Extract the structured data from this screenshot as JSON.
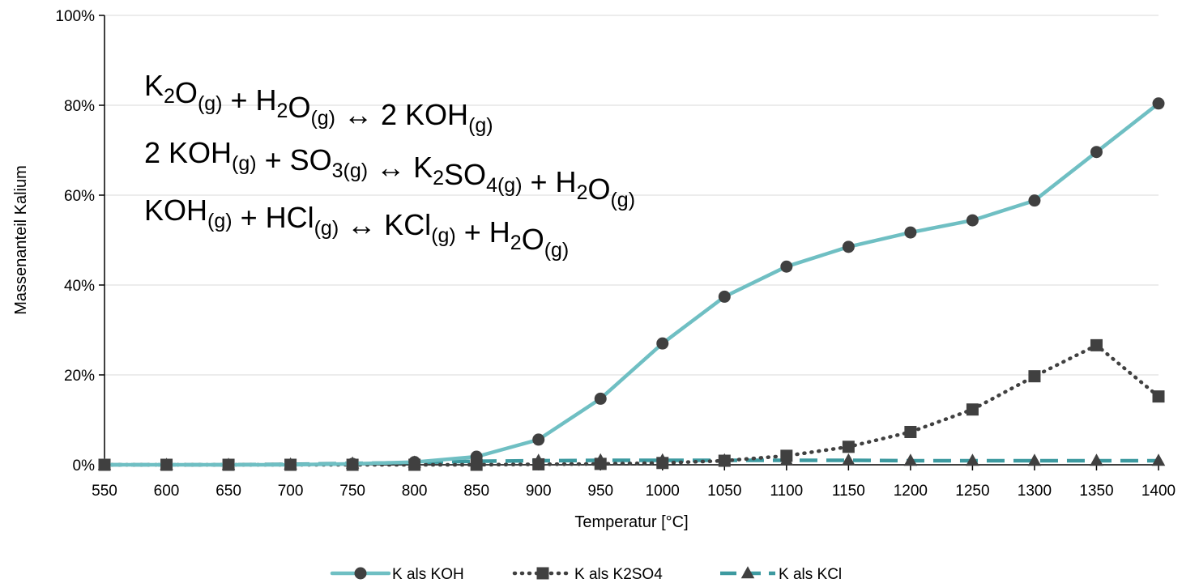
{
  "chart_data": {
    "type": "line",
    "title": "",
    "xlabel": "Temperatur [°C]",
    "ylabel": "Massenanteil Kalium",
    "x": [
      550,
      600,
      650,
      700,
      750,
      800,
      850,
      900,
      950,
      1000,
      1050,
      1100,
      1150,
      1200,
      1250,
      1300,
      1350,
      1400
    ],
    "xlim": [
      550,
      1400
    ],
    "ylim": [
      0,
      100
    ],
    "y_ticks": [
      "0%",
      "20%",
      "40%",
      "60%",
      "80%",
      "100%"
    ],
    "x_ticks": [
      "550",
      "600",
      "650",
      "700",
      "750",
      "800",
      "850",
      "900",
      "950",
      "1000",
      "1050",
      "1100",
      "1150",
      "1200",
      "1250",
      "1300",
      "1350",
      "1400"
    ],
    "grid": true,
    "legend_position": "bottom",
    "series": [
      {
        "name": "K als KOH",
        "color": "#6fbfc3",
        "line_style": "solid",
        "marker": "circle",
        "values": [
          0,
          0,
          0,
          0,
          0.2,
          0.6,
          1.8,
          5.6,
          14.7,
          27.0,
          37.4,
          44.1,
          48.5,
          51.7,
          54.4,
          58.8,
          69.6,
          80.4
        ]
      },
      {
        "name": "K als K2SO4",
        "color": "#404040",
        "line_style": "dotted",
        "marker": "square",
        "values": [
          0,
          0,
          0,
          0,
          0,
          0,
          0,
          0.1,
          0.2,
          0.4,
          0.9,
          2.0,
          4.0,
          7.3,
          12.3,
          19.7,
          26.6,
          15.2
        ]
      },
      {
        "name": "K als KCl",
        "color": "#3d9aa0",
        "line_style": "dashed",
        "marker": "triangle",
        "values": [
          0,
          0,
          0,
          0.1,
          0.3,
          0.5,
          0.8,
          0.9,
          1.0,
          1.0,
          1.0,
          1.0,
          1.0,
          0.9,
          0.9,
          0.9,
          0.9,
          0.9
        ]
      }
    ],
    "annotations": [
      {
        "parts": [
          [
            "K",
            "n"
          ],
          [
            "2",
            "sub"
          ],
          [
            "O",
            "n"
          ],
          [
            "(g)",
            "sub"
          ],
          [
            " + H",
            "n"
          ],
          [
            "2",
            "sub"
          ],
          [
            "O",
            "n"
          ],
          [
            "(g)",
            "sub"
          ],
          [
            " ↔ 2 KOH",
            "n"
          ],
          [
            "(g)",
            "sub"
          ]
        ]
      },
      {
        "parts": [
          [
            "2 KOH",
            "n"
          ],
          [
            "(g)",
            "sub"
          ],
          [
            " + SO",
            "n"
          ],
          [
            "3(g)",
            "sub"
          ],
          [
            " ↔ K",
            "n"
          ],
          [
            "2",
            "sub"
          ],
          [
            "SO",
            "n"
          ],
          [
            "4(g)",
            "sub"
          ],
          [
            " + H",
            "n"
          ],
          [
            "2",
            "sub"
          ],
          [
            "O",
            "n"
          ],
          [
            "(g)",
            "sub"
          ]
        ]
      },
      {
        "parts": [
          [
            "KOH",
            "n"
          ],
          [
            "(g)",
            "sub"
          ],
          [
            " + HCl",
            "n"
          ],
          [
            "(g)",
            "sub"
          ],
          [
            " ↔ KCl",
            "n"
          ],
          [
            "(g)",
            "sub"
          ],
          [
            " + H",
            "n"
          ],
          [
            "2",
            "sub"
          ],
          [
            "O",
            "n"
          ],
          [
            "(g)",
            "sub"
          ]
        ]
      }
    ]
  }
}
